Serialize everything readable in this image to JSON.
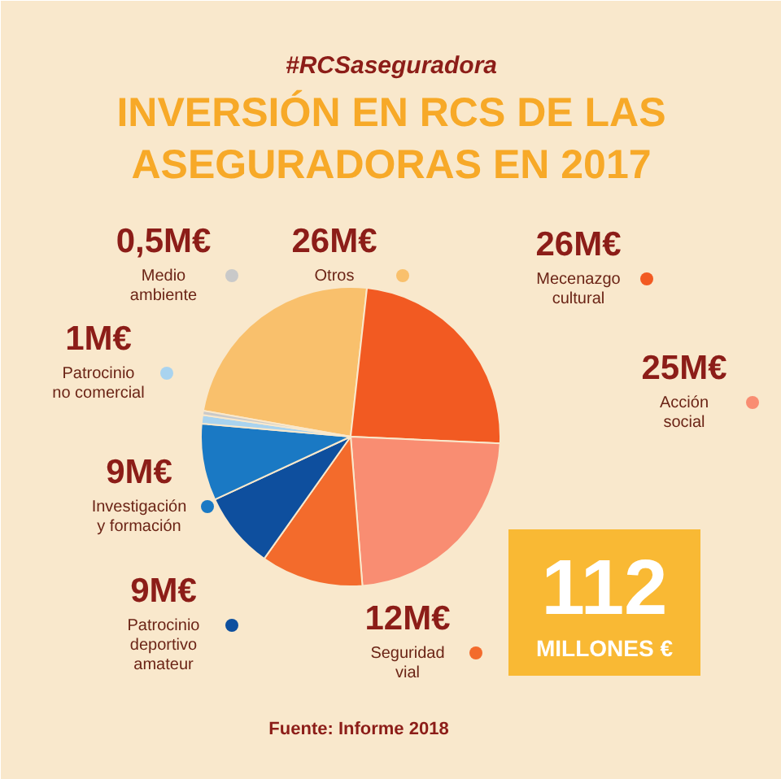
{
  "chart_data": {
    "type": "pie",
    "subtitle": "#RCSaseguradora",
    "title": "INVERSIÓN EN RCS DE LAS ASEGURADORAS EN 2017",
    "categories": [
      "Otros",
      "Mecenazgo cultural",
      "Acción social",
      "Seguridad vial",
      "Patrocinio deportivo amateur",
      "Investigación y formación",
      "Patrocinio no comercial",
      "Medio ambiente"
    ],
    "values": [
      26,
      26,
      25,
      12,
      9,
      9,
      1,
      0.5
    ],
    "value_labels": [
      "26M€",
      "26M€",
      "25M€",
      "12M€",
      "9M€",
      "9M€",
      "1M€",
      "0,5M€"
    ],
    "colors": [
      "#f9c06c",
      "#f25a22",
      "#f98d72",
      "#f36b2c",
      "#0e4f9e",
      "#1a79c4",
      "#a9d3ef",
      "#c9c9c9"
    ],
    "legend": "bottom right",
    "annotations": [
      "112 MILLONES €",
      "Fuente: Informe 2018"
    ]
  }
}
